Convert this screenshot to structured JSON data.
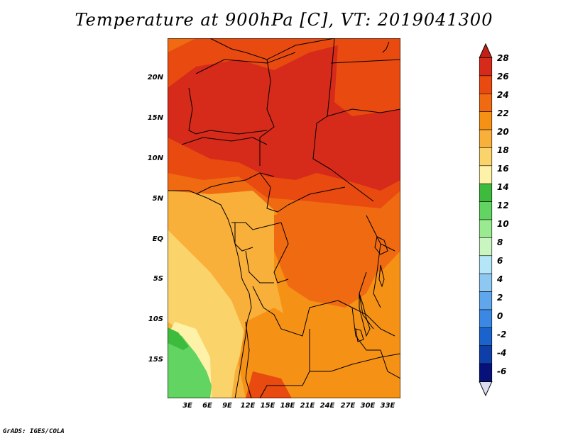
{
  "title": "Temperature at 900hPa [C], VT: 2019041300",
  "credit": "GrADS: IGES/COLA",
  "lat_labels": [
    "20N",
    "15N",
    "10N",
    "5N",
    "EQ",
    "5S",
    "10S",
    "15S"
  ],
  "lon_labels": [
    "3E",
    "6E",
    "9E",
    "12E",
    "15E",
    "18E",
    "21E",
    "24E",
    "27E",
    "30E",
    "33E"
  ],
  "colorbar": {
    "labels": [
      "28",
      "26",
      "24",
      "22",
      "20",
      "18",
      "16",
      "14",
      "12",
      "10",
      "8",
      "6",
      "4",
      "2",
      "0",
      "-2",
      "-4",
      "-6"
    ],
    "colors": [
      "#d62a1a",
      "#e84a10",
      "#f06a12",
      "#f59216",
      "#f8b03a",
      "#fad36a",
      "#fdf2a8",
      "#3dbb3d",
      "#62d462",
      "#9aeb90",
      "#c8f5c0",
      "#b4e6f8",
      "#8ec8f2",
      "#60a6ec",
      "#3a88e4",
      "#1a62cc",
      "#0e3ea8",
      "#06127a"
    ],
    "top_arrow_color": "#c41f14",
    "bottom_arrow_color": "#dcdcf0"
  },
  "colors": {
    "hottest": "#d62a1a",
    "hot": "#e84a10",
    "warm": "#f06a12",
    "mild": "#f59216",
    "cool": "#f8b03a",
    "pale": "#fad36a",
    "green": "#62d462"
  }
}
